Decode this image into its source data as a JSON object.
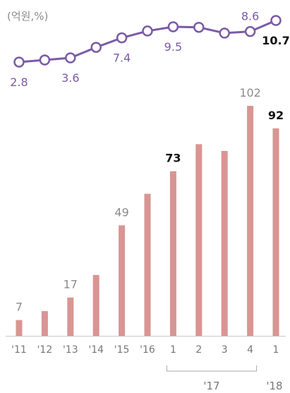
{
  "unit_label": "(억원,%)",
  "colors": {
    "bar": "#d99593",
    "line": "#7b5aa6",
    "marker_fill": "#ffffff",
    "label_muted": "#8c8c8c",
    "label_bold": "#111111",
    "axis": "#c8c8c8"
  },
  "chart_data": [
    {
      "type": "bar",
      "categories": [
        "'11",
        "'12",
        "'13",
        "'14",
        "'15",
        "'16",
        "1",
        "2",
        "3",
        "4",
        "1"
      ],
      "group_labels": [
        {
          "label": "'17",
          "from": 6,
          "to": 9
        },
        {
          "label": "'18",
          "from": 10,
          "to": 10
        }
      ],
      "values": [
        7,
        11,
        17,
        27,
        49,
        63,
        73,
        85,
        82,
        102,
        92
      ],
      "data_labels": [
        {
          "index": 0,
          "text": "7",
          "bold": false
        },
        {
          "index": 2,
          "text": "17",
          "bold": false
        },
        {
          "index": 4,
          "text": "49",
          "bold": false
        },
        {
          "index": 6,
          "text": "73",
          "bold": true
        },
        {
          "index": 9,
          "text": "102",
          "bold": false
        },
        {
          "index": 10,
          "text": "92",
          "bold": true
        }
      ],
      "ylim": [
        0,
        102
      ]
    },
    {
      "type": "line",
      "categories": [
        "'11",
        "'12",
        "'13",
        "'14",
        "'15",
        "'16",
        "1",
        "2",
        "3",
        "4",
        "1"
      ],
      "values": [
        2.8,
        3.2,
        3.6,
        5.6,
        7.4,
        8.7,
        9.5,
        9.4,
        8.3,
        8.6,
        10.7
      ],
      "data_labels": [
        {
          "index": 0,
          "text": "2.8",
          "pos": "below",
          "bold": false
        },
        {
          "index": 2,
          "text": "3.6",
          "pos": "below",
          "bold": false
        },
        {
          "index": 4,
          "text": "7.4",
          "pos": "below",
          "bold": false
        },
        {
          "index": 6,
          "text": "9.5",
          "pos": "below",
          "bold": false
        },
        {
          "index": 9,
          "text": "8.6",
          "pos": "above",
          "bold": false
        },
        {
          "index": 10,
          "text": "10.7",
          "pos": "below",
          "bold": true
        }
      ],
      "ylim": [
        2.8,
        10.7
      ]
    }
  ]
}
